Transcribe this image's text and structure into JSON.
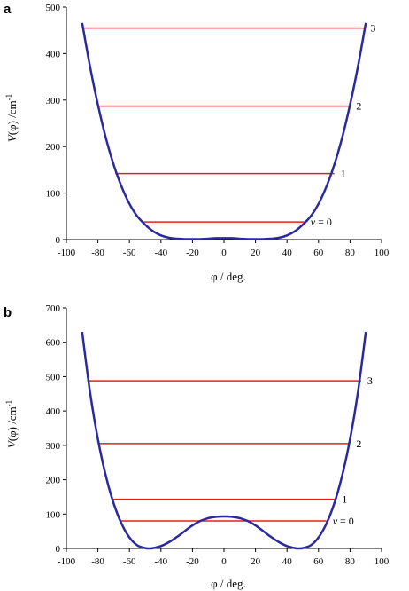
{
  "colors": {
    "curve": "#2a2aa0",
    "levels": "#e0201c",
    "axes": "#000000"
  },
  "chart_data": [
    {
      "type": "line",
      "panel_label": "a",
      "xlabel": "φ / deg.",
      "ylabel_parts": [
        "V",
        "(φ) /cm",
        "-1"
      ],
      "xlim": [
        -100,
        100
      ],
      "ylim": [
        0,
        500
      ],
      "x_ticks": [
        "-100",
        "-80",
        "-60",
        "-40",
        "-20",
        "0",
        "20",
        "40",
        "60",
        "80",
        "100"
      ],
      "y_ticks": [
        "0",
        "100",
        "200",
        "300",
        "400",
        "500"
      ],
      "grid": false,
      "curve": {
        "x": [
          -90,
          -85,
          -80,
          -75,
          -70,
          -65,
          -60,
          -55,
          -50,
          -45,
          -40,
          -35,
          -30,
          -25,
          -20,
          -15,
          -10,
          -5,
          0,
          5,
          10,
          15,
          20,
          25,
          30,
          35,
          40,
          45,
          50,
          55,
          60,
          65,
          70,
          75,
          80,
          85,
          90
        ],
        "y": [
          466,
          372,
          290,
          219,
          161,
          114,
          77,
          50,
          32,
          18,
          9,
          4,
          2,
          1,
          1,
          1,
          2,
          3,
          3,
          3,
          2,
          1,
          1,
          1,
          2,
          4,
          9,
          18,
          32,
          50,
          77,
          114,
          161,
          219,
          290,
          372,
          466
        ]
      },
      "levels": [
        {
          "label": "v = 0",
          "value": 38,
          "x_range": [
            -52,
            51
          ]
        },
        {
          "label": "1",
          "value": 142,
          "x_range": [
            -69,
            70
          ]
        },
        {
          "label": "2",
          "value": 287,
          "x_range": [
            -80,
            80
          ]
        },
        {
          "label": "3",
          "value": 455,
          "x_range": [
            -89,
            89
          ]
        }
      ]
    },
    {
      "type": "line",
      "panel_label": "b",
      "xlabel": "φ / deg.",
      "ylabel_parts": [
        "V",
        "(φ) /cm",
        "-1"
      ],
      "xlim": [
        -100,
        100
      ],
      "ylim": [
        0,
        700
      ],
      "x_ticks": [
        "-100",
        "-80",
        "-60",
        "-40",
        "-20",
        "0",
        "20",
        "40",
        "60",
        "80",
        "100"
      ],
      "y_ticks": [
        "0",
        "100",
        "200",
        "300",
        "400",
        "500",
        "600",
        "700"
      ],
      "grid": false,
      "curve": {
        "x": [
          -90,
          -85,
          -80,
          -75,
          -70,
          -65,
          -60,
          -55,
          -50,
          -47,
          -45,
          -40,
          -35,
          -30,
          -25,
          -20,
          -15,
          -10,
          -5,
          0,
          5,
          10,
          15,
          20,
          25,
          30,
          35,
          40,
          45,
          47,
          50,
          55,
          60,
          65,
          70,
          75,
          80,
          85,
          90
        ],
        "y": [
          630,
          455,
          318,
          212,
          131,
          72,
          32,
          9,
          1,
          0,
          1,
          7,
          18,
          33,
          50,
          67,
          80,
          88,
          92,
          93,
          92,
          88,
          80,
          67,
          50,
          33,
          18,
          7,
          1,
          0,
          1,
          9,
          32,
          72,
          131,
          212,
          318,
          455,
          630
        ],
        "minimum_x": [
          -47,
          47
        ],
        "barrier": 93
      },
      "levels": [
        {
          "label": "v = 0",
          "value": 80,
          "x_range": [
            -66,
            65
          ]
        },
        {
          "label": "1",
          "value": 143,
          "x_range": [
            -71,
            71
          ]
        },
        {
          "label": "2",
          "value": 305,
          "x_range": [
            -80,
            80
          ]
        },
        {
          "label": "3",
          "value": 488,
          "x_range": [
            -86,
            87
          ]
        }
      ]
    }
  ]
}
